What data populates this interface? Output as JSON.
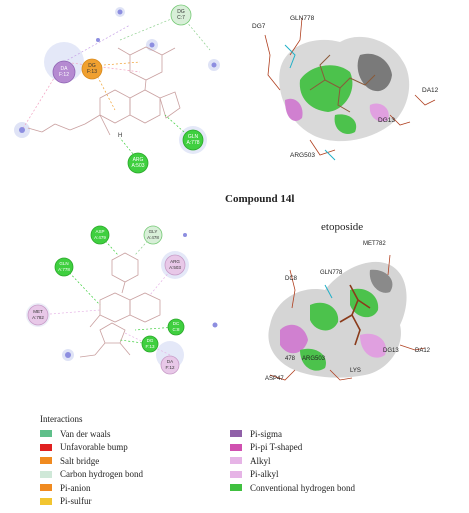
{
  "captions": {
    "compound": "Compound 14l",
    "etoposide": "etoposide"
  },
  "top_left": {
    "residues": [
      {
        "id": "dg-c7",
        "line1": "DG",
        "line2": "C:7",
        "color": "#d8efd8",
        "stroke": "#74c974"
      },
      {
        "id": "da-f12",
        "line1": "DA",
        "line2": "F:12",
        "color": "#b58ad1",
        "stroke": "#8e63b3"
      },
      {
        "id": "dg-f13",
        "line1": "DG",
        "line2": "F:13",
        "color": "#f0a030",
        "stroke": "#d98a1c"
      },
      {
        "id": "gln-a778",
        "line1": "GLN",
        "line2": "A:778",
        "color": "#3fcf3f",
        "stroke": "#2aa72a"
      },
      {
        "id": "arg-a503",
        "line1": "ARG",
        "line2": "A:503",
        "color": "#3fcf3f",
        "stroke": "#2aa72a"
      }
    ],
    "atom_label": "H"
  },
  "top_right": {
    "labels": [
      "DG7",
      "GLN778",
      "DA12",
      "DG13",
      "ARG503"
    ]
  },
  "bottom_left": {
    "residues": [
      {
        "id": "asp-a479",
        "line1": "ASP",
        "line2": "A:479",
        "color": "#3fcf3f",
        "stroke": "#2aa72a"
      },
      {
        "id": "gly-a478",
        "line1": "GLY",
        "line2": "A:478",
        "color": "#d8efd8",
        "stroke": "#74c974"
      },
      {
        "id": "arg-a503",
        "line1": "ARG",
        "line2": "A:503",
        "color": "#e8c8e8",
        "stroke": "#c79bc7"
      },
      {
        "id": "gln-a778",
        "line1": "GLN",
        "line2": "A:778",
        "color": "#3fcf3f",
        "stroke": "#2aa72a"
      },
      {
        "id": "met-a782",
        "line1": "MET",
        "line2": "A:782",
        "color": "#e8c8e8",
        "stroke": "#c79bc7"
      },
      {
        "id": "dc-c8",
        "line1": "DC",
        "line2": "C:8",
        "color": "#3fcf3f",
        "stroke": "#2aa72a"
      },
      {
        "id": "dg-f13",
        "line1": "DG",
        "line2": "F:13",
        "color": "#3fcf3f",
        "stroke": "#2aa72a"
      },
      {
        "id": "da-f12",
        "line1": "DA",
        "line2": "F:12",
        "color": "#e8c8e8",
        "stroke": "#c79bc7"
      }
    ]
  },
  "bottom_right": {
    "labels": [
      "MET782",
      "DC8",
      "GLN778",
      "DG13",
      "DA12",
      "478",
      "ARG503",
      "ASP47",
      "LYS"
    ]
  },
  "legend": {
    "title": "Interactions",
    "items": [
      {
        "label": "Van der waals",
        "color": "#5fbf8a"
      },
      {
        "label": "Unfavorable bump",
        "color": "#e02020"
      },
      {
        "label": "Salt bridge",
        "color": "#f08a20"
      },
      {
        "label": "Carbon hydrogen bond",
        "color": "#cfe8d8"
      },
      {
        "label": "Pi-anion",
        "color": "#f08a20"
      },
      {
        "label": "Pi-sulfur",
        "color": "#f2c530"
      },
      {
        "label": "Pi-sigma",
        "color": "#9060a8"
      },
      {
        "label": "Pi-pi T-shaped",
        "color": "#d050b0"
      },
      {
        "label": "Alkyl",
        "color": "#e6b4e6"
      },
      {
        "label": "Pi-alkyl",
        "color": "#e6b4e6"
      },
      {
        "label": "Conventional hydrogen bond",
        "color": "#40c040"
      }
    ]
  }
}
